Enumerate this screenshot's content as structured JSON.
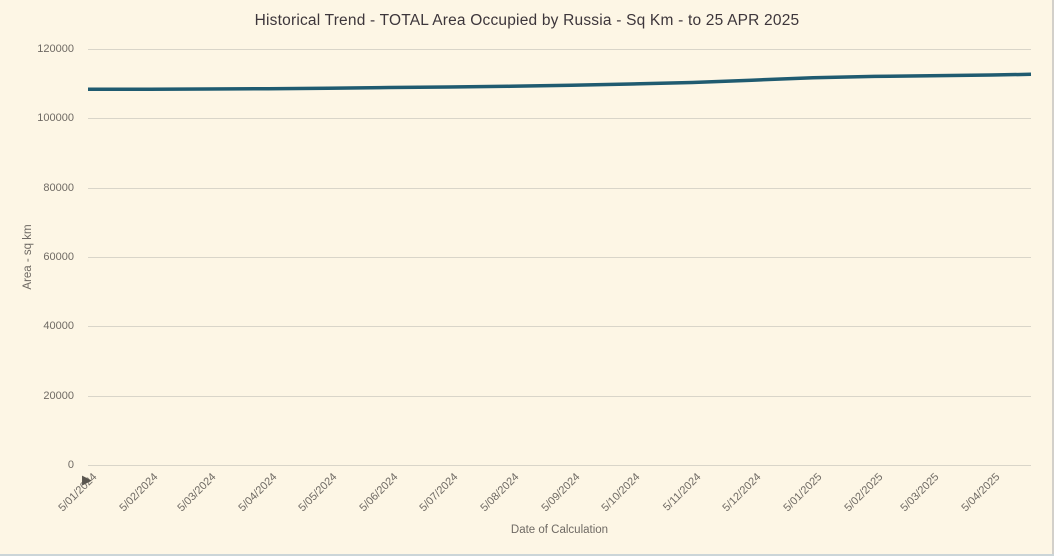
{
  "page": {
    "background": "#fdf6e5",
    "border_right_color": "#d3d0ca",
    "border_bottom_color": "#cbd5d8"
  },
  "theme": {
    "title_color": "#3d363b",
    "axis_text_color": "#6f6a64",
    "grid_color": "#d9d5c9",
    "line_color": "#1f5b70"
  },
  "cursor": "▶",
  "chart_data": {
    "type": "line",
    "title": "Historical Trend - TOTAL Area Occupied by Russia - Sq Km - to 25 APR 2025",
    "xlabel": "Date of Calculation",
    "ylabel": "Area - sq km",
    "ylim": [
      0,
      120000
    ],
    "y_ticks": [
      0,
      20000,
      40000,
      60000,
      80000,
      100000,
      120000
    ],
    "grid": "horizontal-only",
    "legend": "none",
    "x_axis": {
      "kind": "date-linear",
      "range_days": [
        0,
        476
      ],
      "ticks": [
        {
          "label": "5/01/2024",
          "day": 0
        },
        {
          "label": "5/02/2024",
          "day": 31
        },
        {
          "label": "5/03/2024",
          "day": 60
        },
        {
          "label": "5/04/2024",
          "day": 91
        },
        {
          "label": "5/05/2024",
          "day": 121
        },
        {
          "label": "5/06/2024",
          "day": 152
        },
        {
          "label": "5/07/2024",
          "day": 182
        },
        {
          "label": "5/08/2024",
          "day": 213
        },
        {
          "label": "5/09/2024",
          "day": 244
        },
        {
          "label": "5/10/2024",
          "day": 274
        },
        {
          "label": "5/11/2024",
          "day": 305
        },
        {
          "label": "5/12/2024",
          "day": 335
        },
        {
          "label": "5/01/2025",
          "day": 366
        },
        {
          "label": "5/02/2025",
          "day": 397
        },
        {
          "label": "5/03/2025",
          "day": 425
        },
        {
          "label": "5/04/2025",
          "day": 456
        }
      ]
    },
    "series": [
      {
        "name": "TOTAL Area Occupied by Russia - Sq Km",
        "color": "#1f5b70",
        "points": [
          {
            "date": "5/01/2024",
            "day": 0,
            "value": 108380
          },
          {
            "date": "5/02/2024",
            "day": 31,
            "value": 108400
          },
          {
            "date": "5/03/2024",
            "day": 60,
            "value": 108450
          },
          {
            "date": "5/04/2024",
            "day": 91,
            "value": 108550
          },
          {
            "date": "5/05/2024",
            "day": 121,
            "value": 108700
          },
          {
            "date": "5/06/2024",
            "day": 152,
            "value": 108900
          },
          {
            "date": "5/07/2024",
            "day": 182,
            "value": 109050
          },
          {
            "date": "5/08/2024",
            "day": 213,
            "value": 109240
          },
          {
            "date": "5/09/2024",
            "day": 244,
            "value": 109560
          },
          {
            "date": "5/10/2024",
            "day": 274,
            "value": 109900
          },
          {
            "date": "5/11/2024",
            "day": 305,
            "value": 110350
          },
          {
            "date": "5/12/2024",
            "day": 335,
            "value": 111000
          },
          {
            "date": "5/01/2025",
            "day": 366,
            "value": 111700
          },
          {
            "date": "5/02/2025",
            "day": 397,
            "value": 112100
          },
          {
            "date": "5/03/2025",
            "day": 425,
            "value": 112270
          },
          {
            "date": "5/04/2025",
            "day": 456,
            "value": 112500
          },
          {
            "date": "25/04/2025",
            "day": 476,
            "value": 112700
          }
        ]
      }
    ]
  }
}
